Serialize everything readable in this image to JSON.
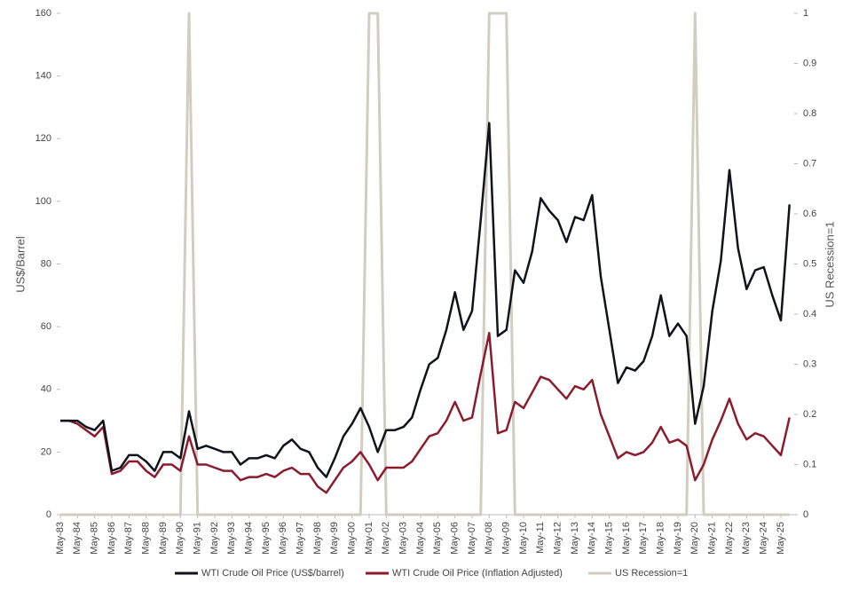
{
  "chart_data": {
    "type": "line",
    "ylabel": "US$/Barrel",
    "y2label": "US Recession=1",
    "categories": [
      "May-83",
      null,
      "May-84",
      null,
      "May-85",
      null,
      "May-86",
      null,
      "May-87",
      null,
      "May-88",
      null,
      "May-89",
      null,
      "May-90",
      null,
      "May-91",
      null,
      "May-92",
      null,
      "May-93",
      null,
      "May-94",
      null,
      "May-95",
      null,
      "May-96",
      null,
      "May-97",
      null,
      "May-98",
      null,
      "May-99",
      null,
      "May-00",
      null,
      "May-01",
      null,
      "May-02",
      null,
      "May-03",
      null,
      "May-04",
      null,
      "May-05",
      null,
      "May-06",
      null,
      "May-07",
      null,
      "May-08",
      null,
      "May-09",
      null,
      "May-10",
      null,
      "May-11",
      null,
      "May-12",
      null,
      "May-13",
      null,
      "May-14",
      null,
      "May-15",
      null,
      "May-16",
      null,
      "May-17",
      null,
      "May-18",
      null,
      "May-19",
      null,
      "May-20",
      null,
      "May-21",
      null,
      "May-22",
      null,
      "May-23",
      null,
      "May-24",
      null,
      "May-25",
      null
    ],
    "series": [
      {
        "name": "WTI Crude Oil Price (US$/barrel)",
        "color": "#0f141b",
        "values": [
          30,
          30,
          30,
          28,
          27,
          30,
          14,
          15,
          19,
          19,
          17,
          14,
          20,
          20,
          18,
          33,
          21,
          22,
          21,
          20,
          20,
          16,
          18,
          18,
          19,
          18,
          22,
          24,
          21,
          20,
          15,
          12,
          18,
          25,
          29,
          34,
          28,
          20,
          27,
          27,
          28,
          31,
          40,
          48,
          50,
          59,
          71,
          59,
          65,
          94,
          125,
          57,
          59,
          78,
          74,
          84,
          101,
          97,
          94,
          87,
          95,
          94,
          102,
          76,
          59,
          42,
          47,
          46,
          49,
          57,
          70,
          57,
          61,
          57,
          29,
          41,
          65,
          81,
          110,
          85,
          72,
          78,
          79,
          70,
          62,
          99
        ]
      },
      {
        "name": "WTI Crude Oil Price (Inflation Adjusted)",
        "color": "#8b1c2e",
        "values": [
          30,
          30,
          29,
          27,
          25,
          28,
          13,
          14,
          17,
          17,
          14,
          12,
          16,
          16,
          14,
          25,
          16,
          16,
          15,
          14,
          14,
          11,
          12,
          12,
          13,
          12,
          14,
          15,
          13,
          13,
          9,
          7,
          11,
          15,
          17,
          20,
          16,
          11,
          15,
          15,
          15,
          17,
          21,
          25,
          26,
          30,
          36,
          30,
          31,
          45,
          58,
          26,
          27,
          36,
          34,
          39,
          44,
          43,
          40,
          37,
          41,
          40,
          43,
          32,
          25,
          18,
          20,
          19,
          20,
          23,
          28,
          23,
          24,
          22,
          11,
          16,
          24,
          30,
          37,
          29,
          24,
          26,
          25,
          22,
          19,
          31
        ]
      },
      {
        "name": "US Recession=1",
        "color": "#d3ccc1",
        "axis": "y2",
        "values": [
          0,
          0,
          0,
          0,
          0,
          0,
          0,
          0,
          0,
          0,
          0,
          0,
          0,
          0,
          0,
          1,
          0,
          0,
          0,
          0,
          0,
          0,
          0,
          0,
          0,
          0,
          0,
          0,
          0,
          0,
          0,
          0,
          0,
          0,
          0,
          0,
          1,
          1,
          0,
          0,
          0,
          0,
          0,
          0,
          0,
          0,
          0,
          0,
          0,
          0,
          1,
          1,
          1,
          0,
          0,
          0,
          0,
          0,
          0,
          0,
          0,
          0,
          0,
          0,
          0,
          0,
          0,
          0,
          0,
          0,
          0,
          0,
          0,
          0,
          1,
          0,
          0,
          0,
          0,
          0,
          0,
          0,
          0,
          0,
          0,
          0
        ]
      }
    ],
    "ylim": [
      0,
      160
    ],
    "yticks": [
      0,
      20,
      40,
      60,
      80,
      100,
      120,
      140,
      160
    ],
    "y2lim": [
      0,
      1
    ],
    "y2ticks": [
      0,
      0.1,
      0.2,
      0.3,
      0.4,
      0.5,
      0.6,
      0.7,
      0.8,
      0.9,
      1
    ],
    "legend": "bottom"
  }
}
